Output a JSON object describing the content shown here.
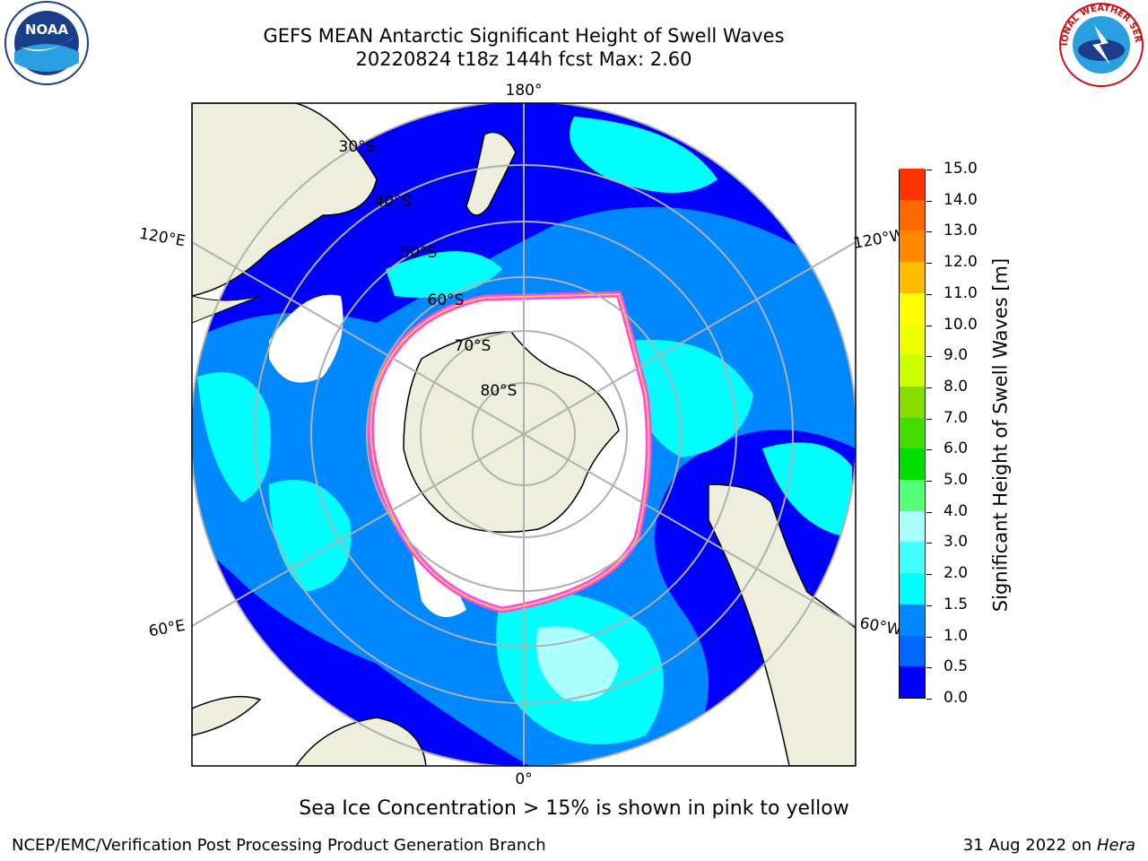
{
  "title": {
    "line1": "GEFS MEAN Antarctic Significant Height of Swell Waves",
    "line2": "20220824 t18z 144h fcst   Max: 2.60"
  },
  "logos": {
    "left": "noaa-logo",
    "left_text": "NOAA",
    "right": "nws-logo",
    "right_text": "NATIONAL WEATHER SERVICE"
  },
  "map": {
    "projection": "south-polar-stereographic",
    "longitude_labels": {
      "top": "180°",
      "bottom": "0°",
      "upper_left": "120°E",
      "upper_right": "120°W",
      "lower_left": "60°E",
      "lower_right": "60°W"
    },
    "latitude_labels": [
      "30°S",
      "40°S",
      "50°S",
      "60°S",
      "70°S",
      "80°S"
    ],
    "colors": {
      "land": "#eeeedc",
      "ice_edge": "#ff44ff",
      "ice_interior": "#ffffff"
    }
  },
  "colorbar": {
    "title": "Significant Height of Swell Waves [m]",
    "ticks": [
      "0.0",
      "0.5",
      "1.0",
      "1.5",
      "2.0",
      "3.0",
      "4.0",
      "5.0",
      "6.0",
      "7.0",
      "8.0",
      "9.0",
      "10.0",
      "11.0",
      "12.0",
      "13.0",
      "14.0",
      "15.0"
    ],
    "colors": [
      "#0000ff",
      "#0066ff",
      "#0088ff",
      "#00ffff",
      "#44ffff",
      "#aaffff",
      "#55ff77",
      "#00dd00",
      "#44dd00",
      "#88dd00",
      "#ccff00",
      "#eeff00",
      "#ffff00",
      "#ffbb00",
      "#ff8800",
      "#ff6600",
      "#ff3300",
      "#ff0000"
    ]
  },
  "caption": "Sea Ice Concentration > 15% is shown in pink to yellow",
  "footer": {
    "left": "NCEP/EMC/Verification Post Processing Product Generation Branch",
    "right_date": "31 Aug 2022 on",
    "right_host": "Hera"
  }
}
